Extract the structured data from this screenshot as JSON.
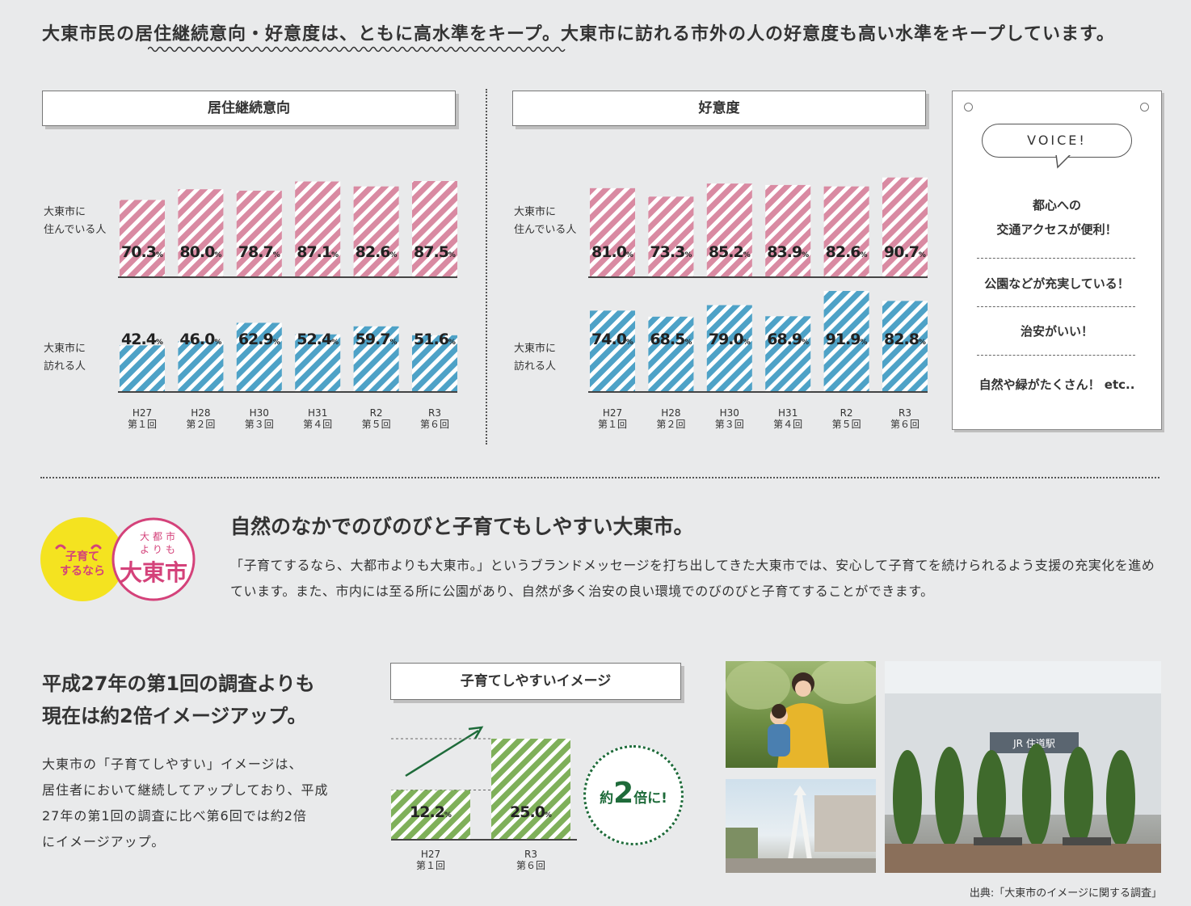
{
  "headline": {
    "text": "大東市民の居住継続意向・好意度は、ともに高水準をキープ。大東市に訪れる市外の人の好意度も高い水準をキープしています。"
  },
  "colors": {
    "pink": "#d98aa2",
    "blue": "#4ea2c7",
    "green": "#7fb05a",
    "bg": "#e9eaeb"
  },
  "residence_panel": {
    "title": "居住継続意向"
  },
  "favor_panel": {
    "title": "好意度"
  },
  "row_labels": {
    "resident_line1": "大東市に",
    "resident_line2": "住んでいる人",
    "visitor_line1": "大東市に",
    "visitor_line2": "訪れる人"
  },
  "percent_sign": "%",
  "chart_data": [
    {
      "type": "bar",
      "title": "居住継続意向",
      "categories": [
        [
          "H27",
          "第１回"
        ],
        [
          "H28",
          "第２回"
        ],
        [
          "H30",
          "第３回"
        ],
        [
          "H31",
          "第４回"
        ],
        [
          "R2",
          "第５回"
        ],
        [
          "R3",
          "第６回"
        ]
      ],
      "series": [
        {
          "name": "大東市に住んでいる人",
          "values": [
            70.3,
            80.0,
            78.7,
            87.1,
            82.6,
            87.5
          ]
        },
        {
          "name": "大東市に訪れる人",
          "values": [
            42.4,
            46.0,
            62.9,
            52.4,
            59.7,
            51.6
          ]
        }
      ],
      "ylim": [
        0,
        100
      ]
    },
    {
      "type": "bar",
      "title": "好意度",
      "categories": [
        [
          "H27",
          "第１回"
        ],
        [
          "H28",
          "第２回"
        ],
        [
          "H30",
          "第３回"
        ],
        [
          "H31",
          "第４回"
        ],
        [
          "R2",
          "第５回"
        ],
        [
          "R3",
          "第６回"
        ]
      ],
      "series": [
        {
          "name": "大東市に住んでいる人",
          "values": [
            81.0,
            73.3,
            85.2,
            83.9,
            82.6,
            90.7
          ]
        },
        {
          "name": "大東市に訪れる人",
          "values": [
            74.0,
            68.5,
            79.0,
            68.9,
            91.9,
            82.8
          ]
        }
      ],
      "ylim": [
        0,
        100
      ]
    },
    {
      "type": "bar",
      "title": "子育てしやすいイメージ",
      "categories": [
        [
          "H27",
          "第１回"
        ],
        [
          "R3",
          "第６回"
        ]
      ],
      "series": [
        {
          "name": "",
          "values": [
            12.2,
            25.0
          ]
        }
      ],
      "ylim": [
        0,
        25
      ]
    }
  ],
  "voice": {
    "label": "VOICE!",
    "items": [
      {
        "line1": "都心への",
        "line2": "交通アクセスが便利！"
      },
      {
        "line1": "公園などが充実している！"
      },
      {
        "line1": "治安がいい！"
      },
      {
        "line1": "自然や緑がたくさん！ etc.."
      }
    ]
  },
  "logo": {
    "yellow_line1": "子育て",
    "yellow_line2": "するなら",
    "pink_line1": "大都市",
    "pink_line2": "よりも",
    "pink_main": "大東市"
  },
  "section": {
    "title": "自然のなかでのびのびと子育てもしやすい大東市。",
    "body": "「子育てするなら、大都市よりも大東市。」というブランドメッセージを打ち出してきた大東市では、安心して子育てを続けられるよう支援の充実化を進めています。また、市内には至る所に公園があり、自然が多く治安の良い環境でのびのびと子育てすることができます。"
  },
  "bottom": {
    "head_line1": "平成27年の第1回の調査よりも",
    "head_line2": "現在は約2倍イメージアップ。",
    "body_lines": [
      "大東市の「子育てしやすい」イメージは、",
      "居住者において継続してアップしており、平成",
      "27年の第1回の調査に比べ第6回では約2倍",
      "にイメージアップ。"
    ],
    "childcare_title": "子育てしやすいイメージ",
    "badge_pre": "約",
    "badge_num": "2",
    "badge_post": "倍に!"
  },
  "photo_station_sign": "JR 住道駅",
  "source": "出典:「大東市のイメージに関する調査」"
}
